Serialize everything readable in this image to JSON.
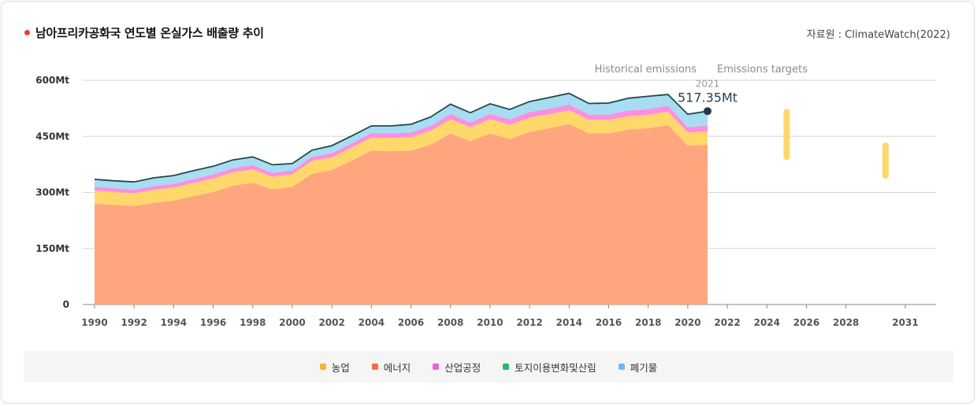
{
  "header": {
    "title": "남아프리카공화국 연도별 온실가스 배출량 추이",
    "source": "자료원 : ClimateWatch(2022)"
  },
  "annotations": {
    "historical": "Historical emissions",
    "targets": "Emissions targets",
    "last_year": "2021",
    "last_value": "517.35Mt"
  },
  "colors": {
    "energy": "#ffa67f",
    "agriculture": "#ffd86b",
    "industrial": "#ff8ee0",
    "landuse": "#3ec97a",
    "waste": "#a8dcf2",
    "total_line": "#1f4a45",
    "target": "#ffd86b"
  },
  "chart_data": {
    "type": "area",
    "stacked": true,
    "x": [
      1990,
      1991,
      1992,
      1993,
      1994,
      1995,
      1996,
      1997,
      1998,
      1999,
      2000,
      2001,
      2002,
      2003,
      2004,
      2005,
      2006,
      2007,
      2008,
      2009,
      2010,
      2011,
      2012,
      2013,
      2014,
      2015,
      2016,
      2017,
      2018,
      2019,
      2020,
      2021
    ],
    "ylim": [
      0,
      600
    ],
    "yticks": [
      0,
      150,
      300,
      450,
      600
    ],
    "ytick_labels": [
      "0",
      "150Mt",
      "300Mt",
      "450Mt",
      "600Mt"
    ],
    "xlim": [
      1990,
      2033
    ],
    "xticks": [
      1990,
      1992,
      1994,
      1996,
      1998,
      2000,
      2002,
      2004,
      2006,
      2008,
      2010,
      2012,
      2014,
      2016,
      2018,
      2020,
      2022,
      2024,
      2026,
      2028,
      2031
    ],
    "grid": true,
    "series": [
      {
        "key": "energy",
        "name": "에너지",
        "values": [
          270,
          267,
          264,
          272,
          278,
          290,
          301,
          318,
          326,
          308,
          315,
          350,
          360,
          385,
          412,
          410,
          412,
          428,
          458,
          437,
          458,
          443,
          462,
          472,
          483,
          458,
          458,
          468,
          472,
          480,
          425,
          428
        ]
      },
      {
        "key": "agriculture",
        "name": "농업",
        "values": [
          35,
          34,
          34,
          35,
          35,
          35,
          36,
          36,
          36,
          34,
          34,
          35,
          34,
          35,
          35,
          36,
          36,
          37,
          38,
          37,
          38,
          38,
          38,
          37,
          37,
          36,
          36,
          36,
          36,
          36,
          35,
          35
        ]
      },
      {
        "key": "industrial",
        "name": "산업공정",
        "values": [
          10,
          10,
          9,
          10,
          10,
          11,
          11,
          11,
          11,
          10,
          10,
          10,
          11,
          11,
          12,
          12,
          12,
          13,
          14,
          13,
          14,
          14,
          15,
          15,
          15,
          14,
          14,
          15,
          15,
          16,
          14,
          16
        ]
      },
      {
        "key": "landuse",
        "name": "토지이용변화및산림",
        "values": [
          0,
          0,
          0,
          0,
          0,
          0,
          0,
          0,
          0,
          0,
          0,
          0,
          0,
          0,
          0,
          0,
          0,
          0,
          0,
          0,
          0,
          0,
          0,
          0,
          0,
          0,
          0,
          0,
          0,
          0,
          0,
          0
        ]
      },
      {
        "key": "waste",
        "name": "폐기물",
        "values": [
          20,
          20,
          21,
          22,
          22,
          22,
          22,
          22,
          22,
          22,
          18,
          18,
          20,
          20,
          19,
          20,
          22,
          24,
          26,
          26,
          27,
          27,
          28,
          30,
          30,
          30,
          31,
          33,
          34,
          30,
          35,
          38
        ]
      }
    ],
    "total": [
      335,
      331,
      328,
      339,
      345,
      358,
      370,
      387,
      395,
      374,
      377,
      413,
      425,
      451,
      478,
      478,
      482,
      502,
      536,
      513,
      537,
      522,
      543,
      554,
      565,
      538,
      539,
      552,
      557,
      562,
      509,
      517.35
    ],
    "targets": [
      {
        "x": 2025,
        "low": 395,
        "high": 515
      },
      {
        "x": 2030,
        "low": 345,
        "high": 425
      }
    ]
  },
  "legend": [
    {
      "key": "agriculture",
      "label": "농업"
    },
    {
      "key": "energy",
      "label": "에너지"
    },
    {
      "key": "industrial",
      "label": "산업공정"
    },
    {
      "key": "landuse",
      "label": "토지이용변화및산림"
    },
    {
      "key": "waste",
      "label": "폐기물"
    }
  ]
}
